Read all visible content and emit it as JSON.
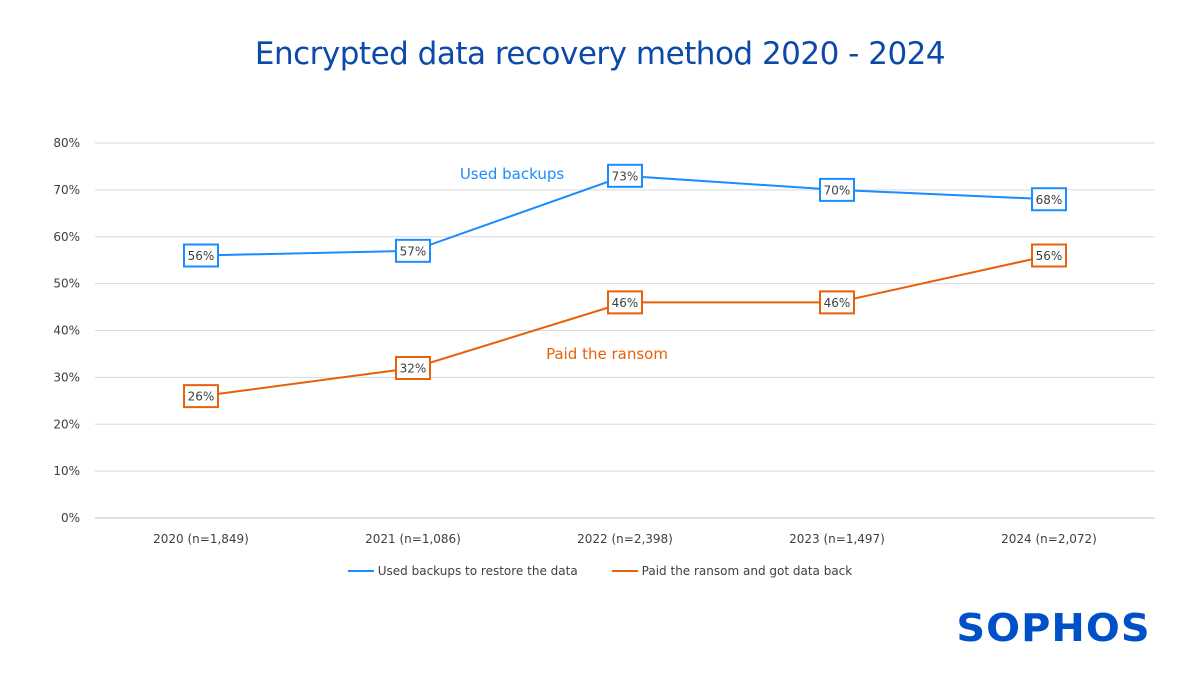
{
  "chart_data": {
    "type": "line",
    "title": "Encrypted data recovery method 2020 - 2024",
    "categories": [
      "2020 (n=1,849)",
      "2021 (n=1,086)",
      "2022 (n=2,398)",
      "2023 (n=1,497)",
      "2024 (n=2,072)"
    ],
    "y_ticks": [
      "0%",
      "10%",
      "20%",
      "30%",
      "40%",
      "50%",
      "60%",
      "70%",
      "80%"
    ],
    "ylim": [
      0,
      80
    ],
    "grid": true,
    "legend_placement": "bottom",
    "series": [
      {
        "name": "Used backups to restore the data",
        "annotation": "Used backups",
        "color": "#1a8cff",
        "values": [
          56,
          57,
          73,
          70,
          68
        ],
        "labels": [
          "56%",
          "57%",
          "73%",
          "70%",
          "68%"
        ]
      },
      {
        "name": "Paid the ransom and got data back",
        "annotation": "Paid the ransom",
        "color": "#e8600a",
        "values": [
          26,
          32,
          46,
          46,
          56
        ],
        "labels": [
          "26%",
          "32%",
          "46%",
          "46%",
          "56%"
        ]
      }
    ]
  },
  "logo": "SOPHOS"
}
